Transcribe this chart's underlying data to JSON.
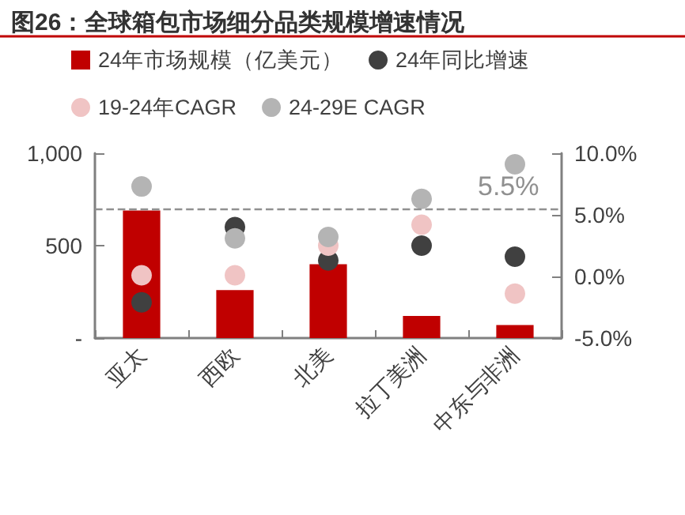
{
  "chart_data": {
    "type": "bar",
    "title": "图26：全球箱包市场细分品类规模增速情况",
    "categories": [
      "亚太",
      "西欧",
      "北美",
      "拉丁美洲",
      "中东与非洲"
    ],
    "series": [
      {
        "name": "24年市场规模（亿美元）",
        "color": "#c00000",
        "values": [
          690,
          260,
          400,
          120,
          70
        ]
      },
      {
        "name": "24年同比增速",
        "type": "scatter",
        "axis": "y2",
        "color": "#404040",
        "values": [
          -2.1,
          4.0,
          1.3,
          2.5,
          1.6
        ]
      },
      {
        "name": "19-24年CAGR",
        "type": "scatter",
        "axis": "y2",
        "color": "#f0c4c4",
        "values": [
          0.1,
          0.1,
          2.5,
          4.2,
          -1.4
        ]
      },
      {
        "name": "24-29E CAGR",
        "type": "scatter",
        "axis": "y2",
        "color": "#b4b4b4",
        "values": [
          7.3,
          3.1,
          3.2,
          6.3,
          9.1
        ]
      }
    ],
    "ylim": [
      0,
      1000
    ],
    "yticks": [
      {
        "value": 0,
        "label": "-"
      },
      500,
      {
        "value": 1000,
        "label": "1,000"
      }
    ],
    "y2lim": [
      -5,
      10
    ],
    "y2ticks": [
      {
        "value": -5,
        "label": "-5.0%"
      },
      {
        "value": 0,
        "label": "0.0%"
      },
      {
        "value": 5,
        "label": "5.0%"
      },
      {
        "value": 10,
        "label": "10.0%"
      }
    ],
    "ref_lines": [
      {
        "axis": "y2",
        "value": 5.5,
        "label": "5.5%",
        "color": "#909090",
        "line_style": "dashed"
      }
    ],
    "marker": "circle",
    "grid": false,
    "legend": "top"
  }
}
